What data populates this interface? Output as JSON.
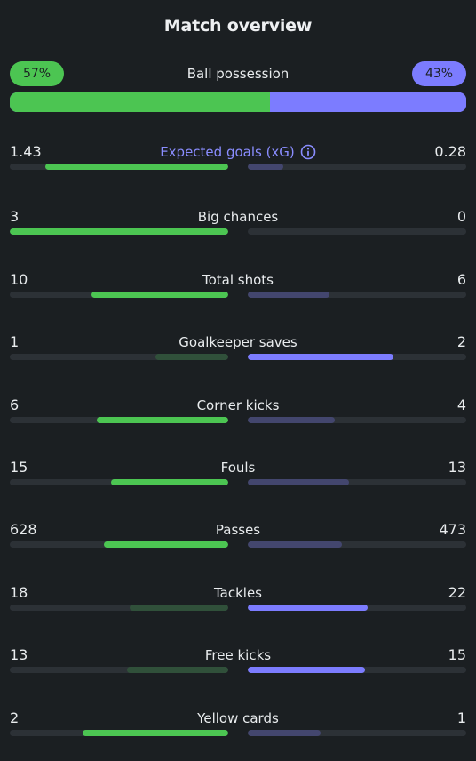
{
  "title": "Match overview",
  "possession": {
    "label": "Ball possession",
    "home": "57%",
    "away": "43%",
    "home_fraction": 0.57
  },
  "colors": {
    "home": "#4cc552",
    "away": "#7c7cff",
    "home_dim": "#30503a",
    "away_dim": "#43466e",
    "track": "#2c3136",
    "background": "#1b1f22"
  },
  "stats": [
    {
      "label": "Expected goals (xG)",
      "home": "1.43",
      "away": "0.28",
      "info": true,
      "home_fraction": 0.836,
      "away_fraction": 0.164
    },
    {
      "label": "Big chances",
      "home": "3",
      "away": "0",
      "home_fraction": 1.0,
      "away_fraction": 0.0
    },
    {
      "label": "Total shots",
      "home": "10",
      "away": "6",
      "home_fraction": 0.625,
      "away_fraction": 0.375
    },
    {
      "label": "Goalkeeper saves",
      "home": "1",
      "away": "2",
      "home_fraction": 0.333,
      "away_fraction": 0.667
    },
    {
      "label": "Corner kicks",
      "home": "6",
      "away": "4",
      "home_fraction": 0.6,
      "away_fraction": 0.4
    },
    {
      "label": "Fouls",
      "home": "15",
      "away": "13",
      "home_fraction": 0.536,
      "away_fraction": 0.464
    },
    {
      "label": "Passes",
      "home": "628",
      "away": "473",
      "home_fraction": 0.57,
      "away_fraction": 0.43
    },
    {
      "label": "Tackles",
      "home": "18",
      "away": "22",
      "home_fraction": 0.45,
      "away_fraction": 0.55
    },
    {
      "label": "Free kicks",
      "home": "13",
      "away": "15",
      "home_fraction": 0.464,
      "away_fraction": 0.536
    },
    {
      "label": "Yellow cards",
      "home": "2",
      "away": "1",
      "home_fraction": 0.667,
      "away_fraction": 0.333
    }
  ]
}
